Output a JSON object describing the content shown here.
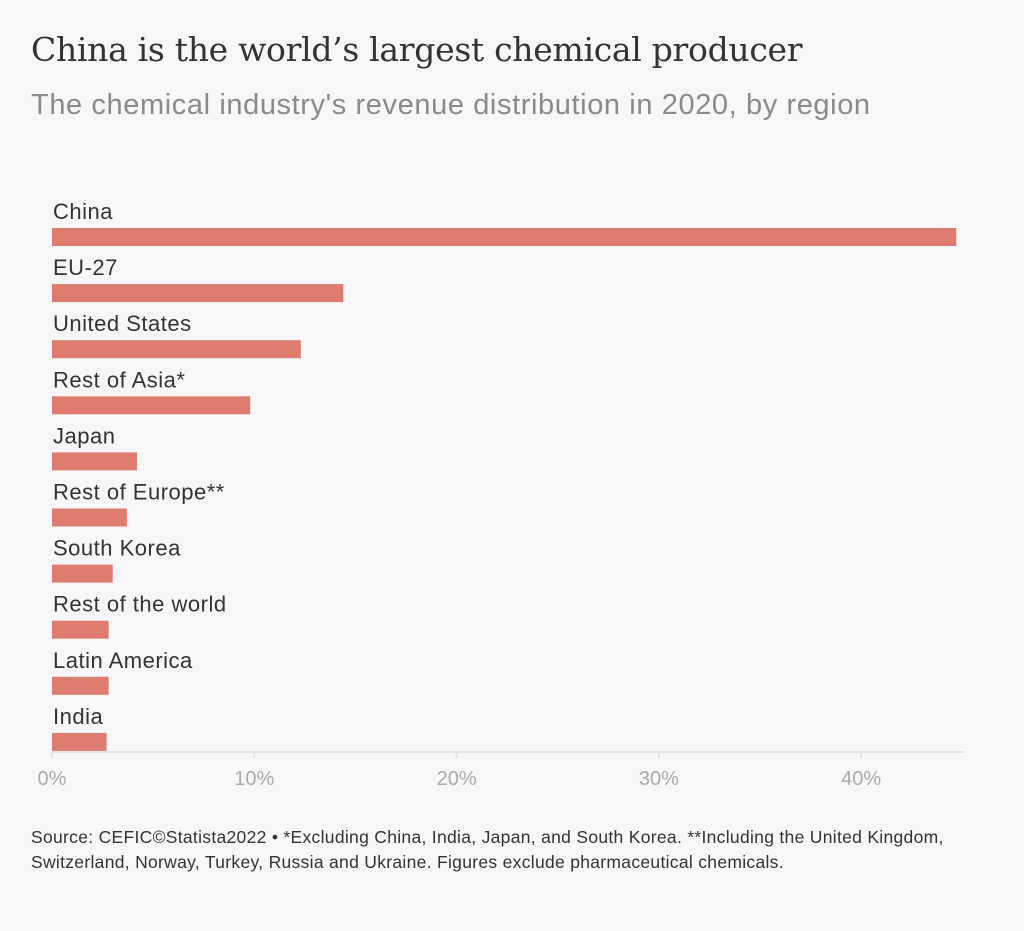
{
  "chart_data": {
    "type": "bar",
    "orientation": "horizontal",
    "title": "China is the world’s largest chemical producer",
    "subtitle": "The chemical industry's revenue distribution in 2020, by region",
    "categories": [
      "China",
      "EU-27",
      "United States",
      "Rest of Asia*",
      "Japan",
      "Rest of Europe**",
      "South Korea",
      "Rest of the world",
      "Latin America",
      "India"
    ],
    "values": [
      44.7,
      14.4,
      12.3,
      9.8,
      4.2,
      3.7,
      3.0,
      2.8,
      2.8,
      2.7
    ],
    "unit": "%",
    "xlim": [
      0,
      45
    ],
    "xticks": [
      0,
      10,
      20,
      30,
      40
    ],
    "xtick_labels": [
      "0%",
      "10%",
      "20%",
      "30%",
      "40%"
    ],
    "xlabel": "",
    "ylabel": "",
    "grid": false,
    "bar_color": "#de7c70"
  },
  "footer": {
    "source": "Source: CEFIC©Statista2022 • *Excluding China, India, Japan, and South Korea. **Including the United Kingdom, Switzerland, Norway, Turkey, Russia and Ukraine. Figures exclude pharmaceutical chemicals."
  }
}
